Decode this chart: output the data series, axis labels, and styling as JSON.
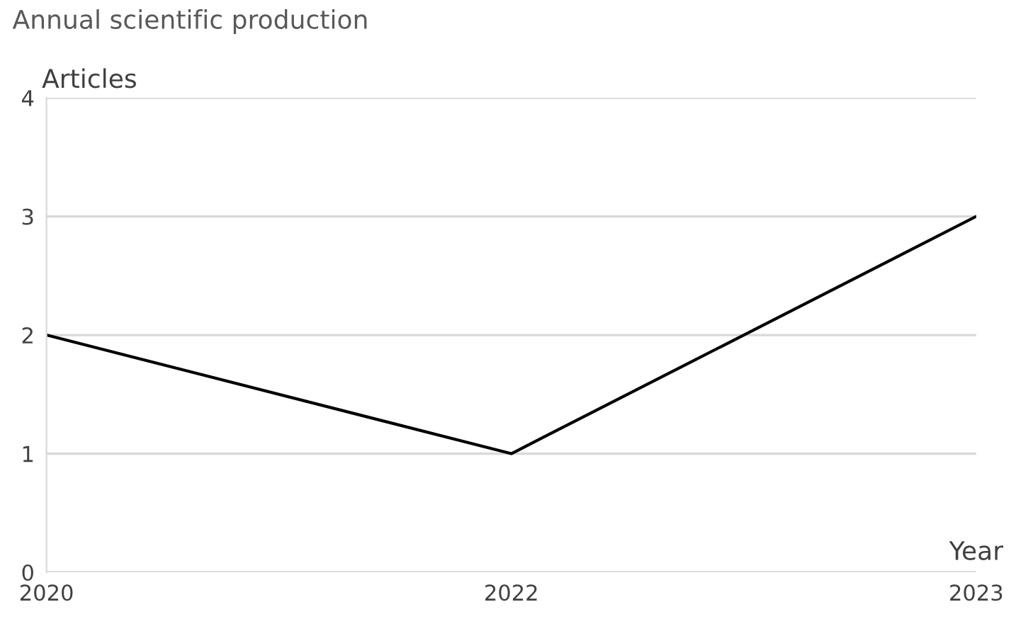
{
  "chart_data": {
    "type": "line",
    "title": "Annual scientific production",
    "xlabel": "Year",
    "ylabel": "Articles",
    "categories": [
      "2020",
      "2022",
      "2023"
    ],
    "series": [
      {
        "color": "#000000",
        "values": [
          2,
          1,
          3
        ]
      }
    ],
    "ylim": [
      0,
      4
    ],
    "yticks": [
      0,
      1,
      2,
      3,
      4
    ],
    "grid": "y",
    "marker": "none",
    "line_style": "solid"
  }
}
